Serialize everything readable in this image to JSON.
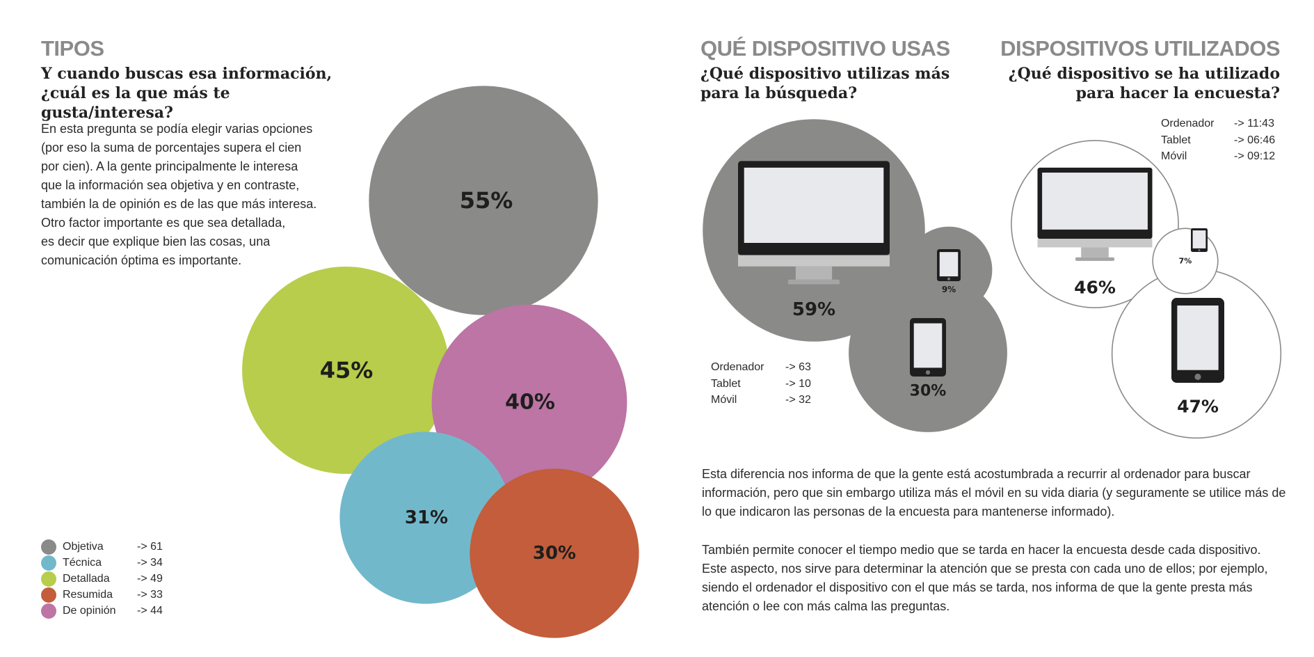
{
  "left": {
    "title": "TIPOS",
    "question": "Y cuando buscas esa información, ¿cuál es la que más te gusta/interesa?",
    "description": [
      "En esta pregunta se podía elegir varias opciones",
      "(por eso la suma de porcentajes supera el cien",
      "por cien). A la gente principalmente le interesa",
      "que la información sea objetiva y en contraste,",
      "también la de opinión es de las que más interesa.",
      "Otro factor importante es que sea detallada,",
      "es decir que explique bien las cosas, una",
      "comunicación óptima es importante."
    ],
    "legend": [
      {
        "label": "Objetiva",
        "value": "-> 61",
        "color": "#8a8a89"
      },
      {
        "label": "Técnica",
        "value": "-> 34",
        "color": "#72b8cb"
      },
      {
        "label": "Detallada",
        "value": "-> 49",
        "color": "#b8cd4b"
      },
      {
        "label": "Resumida",
        "value": "-> 33",
        "color": "#c35d3b"
      },
      {
        "label": "De opinión",
        "value": "-> 44",
        "color": "#bc75a4"
      }
    ]
  },
  "middle": {
    "title": "QUÉ DISPOSITIVO USAS",
    "question": "¿Qué dispositivo utilizas más para la búsqueda?",
    "stats": [
      {
        "label": "Ordenador",
        "value": "-> 63"
      },
      {
        "label": "Tablet",
        "value": "-> 10"
      },
      {
        "label": "Móvil",
        "value": "-> 32"
      }
    ]
  },
  "right": {
    "title": "DISPOSITIVOS UTILIZADOS",
    "question": "¿Qué dispositivo se ha utilizado para hacer la encuesta?",
    "times": [
      {
        "label": "Ordenador",
        "value": "-> 11:43"
      },
      {
        "label": "Tablet",
        "value": "-> 06:46"
      },
      {
        "label": "Móvil",
        "value": "-> 09:12"
      }
    ]
  },
  "bottom": {
    "paragraphs": [
      "Esta diferencia nos informa de que la gente está acostumbrada a recurrir al ordenador para buscar información, pero que sin embargo utiliza más el móvil en su vida diaria (y seguramente se utilice más de lo que indicaron las personas de la encuesta para mantenerse informado).",
      "También permite conocer el tiempo medio que se tarda en hacer la encuesta desde cada dispositivo. Este aspecto, nos sirve para determinar la atención que se presta con cada uno de ellos; por ejemplo, siendo el ordenador el dispositivo con el que más se tarda, nos informa de que la gente presta más atención o lee con más calma las preguntas."
    ]
  },
  "chart_data": [
    {
      "type": "bubble",
      "units": "%",
      "categories": [
        "Objetiva",
        "Detallada",
        "De opinión",
        "Técnica",
        "Resumida"
      ],
      "values": [
        55,
        45,
        40,
        31,
        30
      ],
      "labels": [
        "55%",
        "45%",
        "40%",
        "31%",
        "30%"
      ],
      "colors": [
        "#8a8a89",
        "#b8cd4b",
        "#bc75a4",
        "#72b8cb",
        "#c35d3b"
      ],
      "counts": [
        61,
        49,
        44,
        34,
        33
      ]
    },
    {
      "type": "bubble",
      "units": "%",
      "categories": [
        "Ordenador",
        "Móvil",
        "Tablet"
      ],
      "icons": [
        "monitor-icon",
        "phone-icon",
        "tablet-icon"
      ],
      "values": [
        59,
        30,
        9
      ],
      "labels": [
        "59%",
        "30%",
        "9%"
      ],
      "fill": "#8a8a89"
    },
    {
      "type": "bubble",
      "units": "%",
      "categories": [
        "Ordenador",
        "Tablet",
        "Móvil"
      ],
      "icons": [
        "monitor-icon",
        "tablet-icon",
        "phone-icon"
      ],
      "values": [
        46,
        47,
        7
      ],
      "labels": [
        "46%",
        "47%",
        "7%"
      ],
      "fill": "none",
      "stroke": "#8a8a89"
    }
  ]
}
